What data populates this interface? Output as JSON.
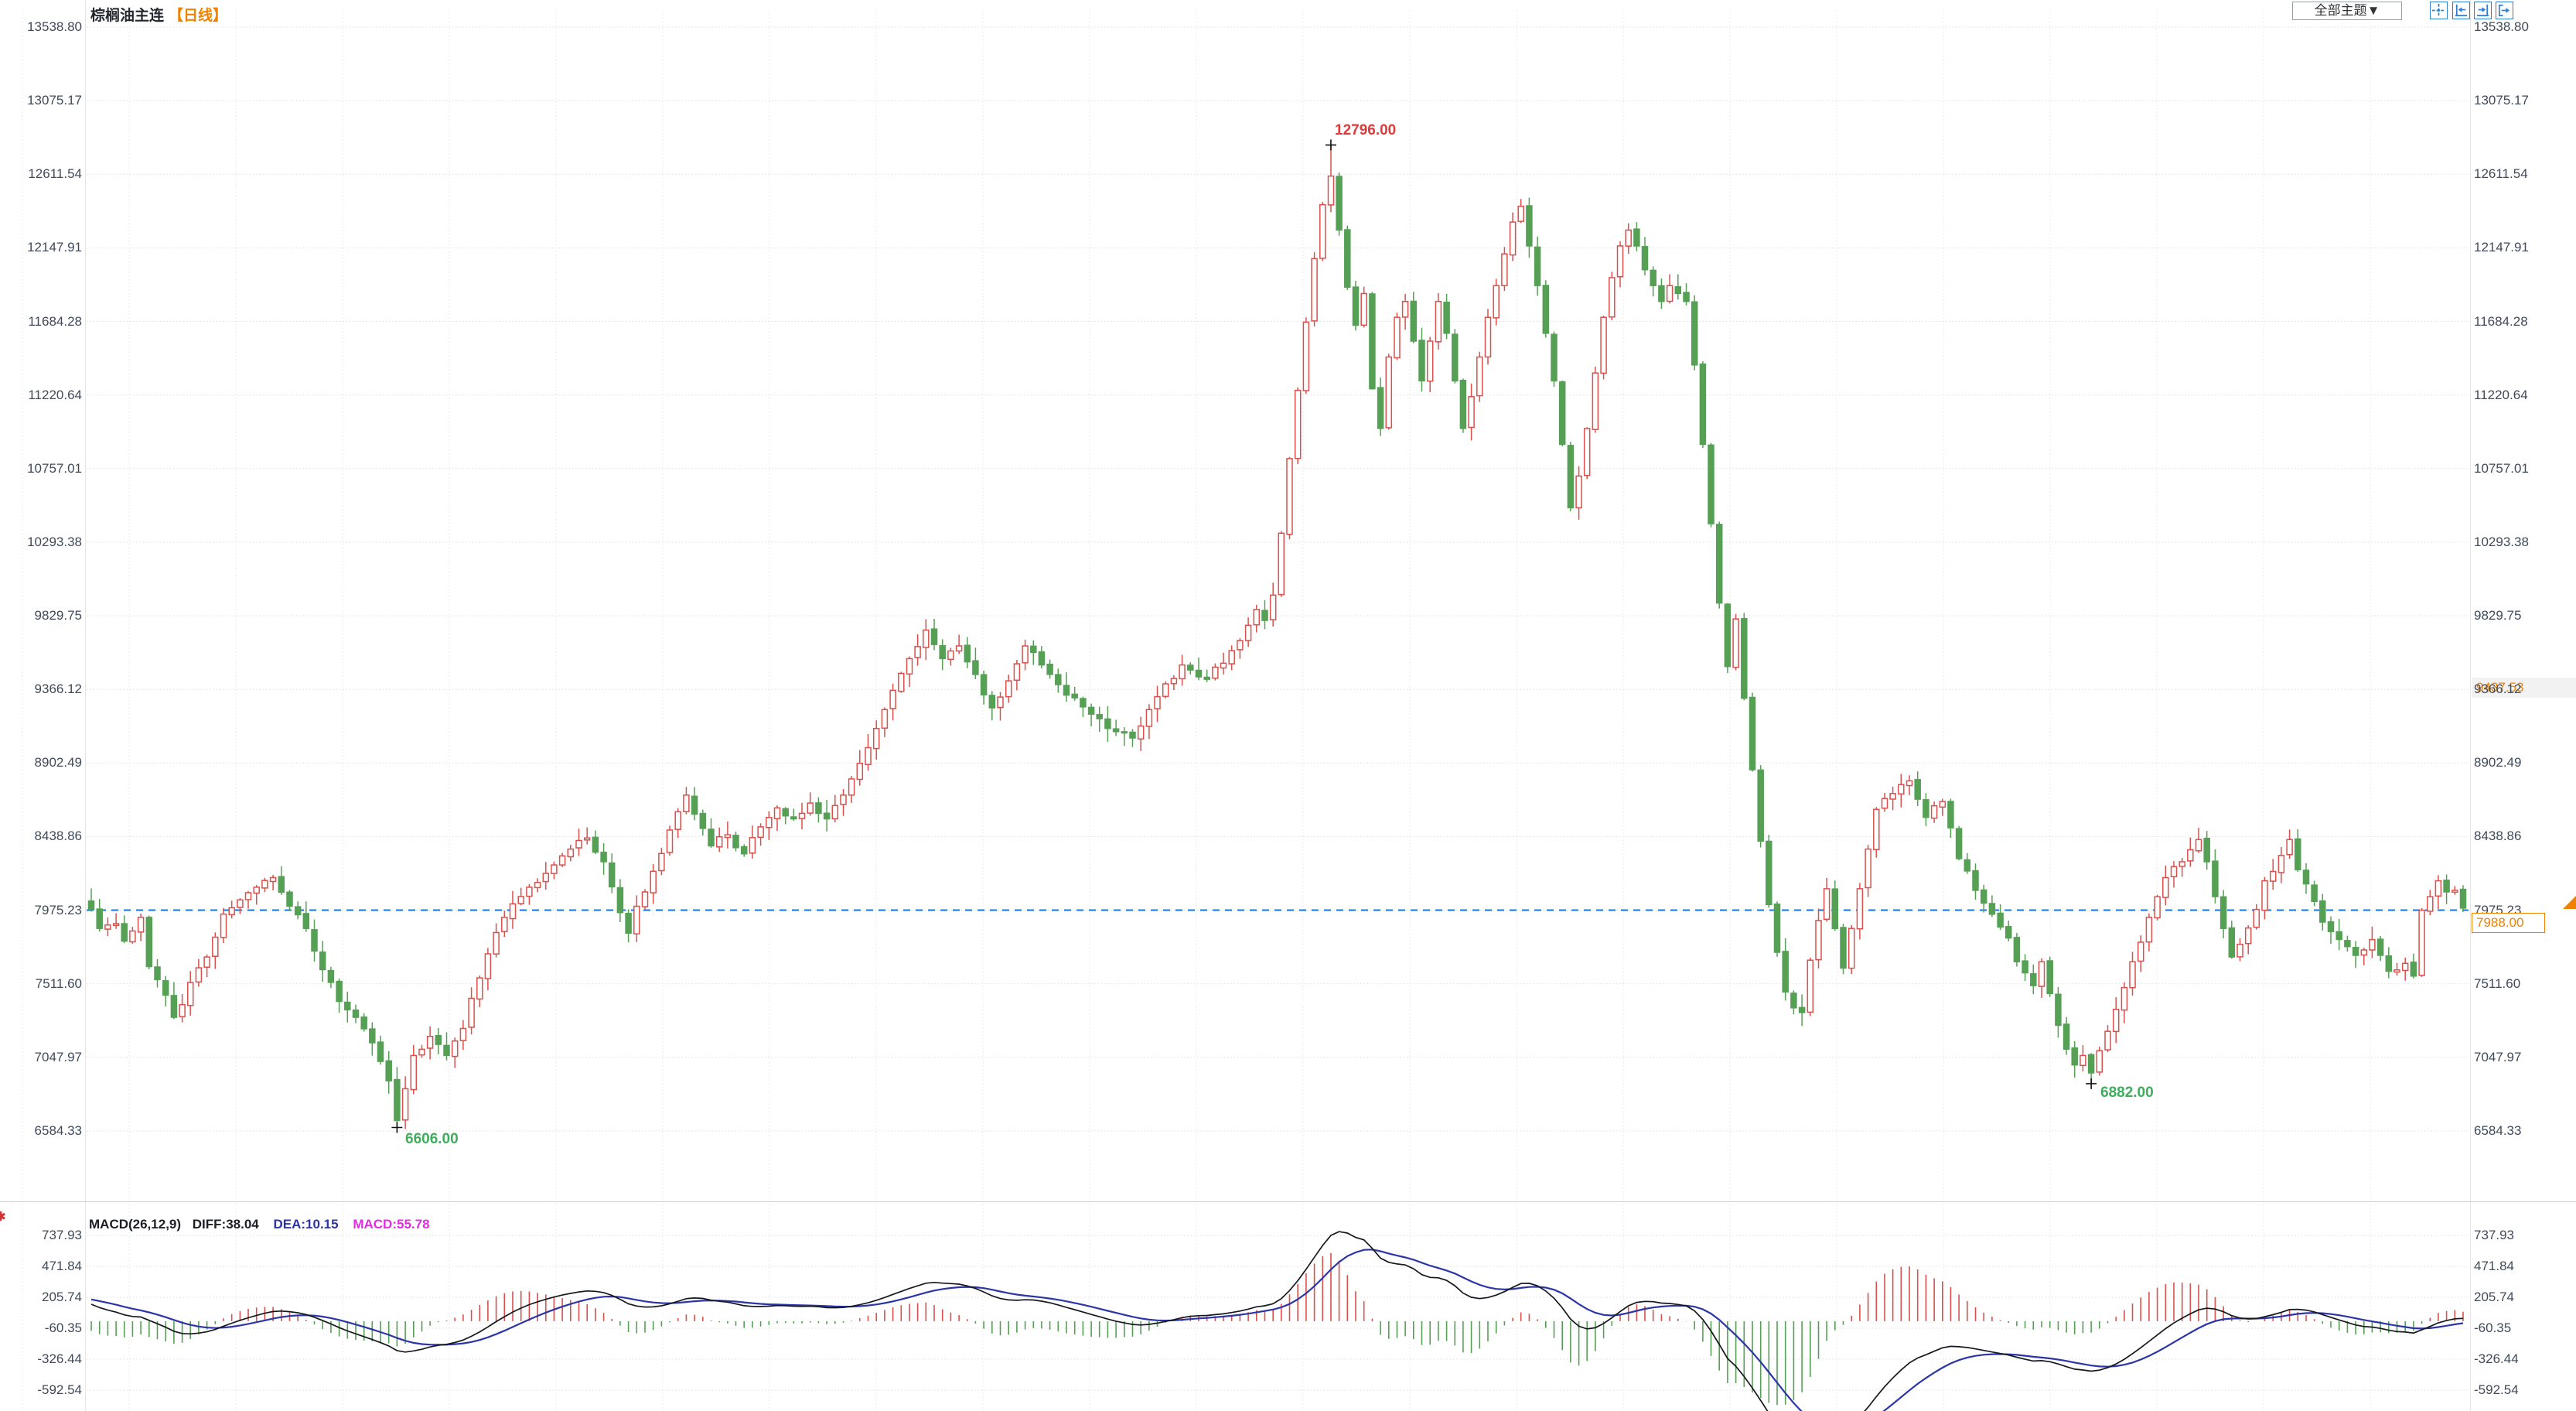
{
  "window": {
    "title": "棕榈油主连",
    "period_badge": "【日线】"
  },
  "toolbar": {
    "theme_dropdown_label": "全部主题▼",
    "buttons": [
      "crosshair-tool",
      "compress-x-axis",
      "expand-x-axis",
      "pan-right"
    ]
  },
  "price_axis": {
    "tick_labels": [
      "13538.80",
      "13075.17",
      "12611.54",
      "12147.91",
      "11684.28",
      "11220.64",
      "10757.01",
      "10293.38",
      "9829.75",
      "9366.12",
      "8902.49",
      "8438.86",
      "7975.23",
      "7511.60",
      "7047.97",
      "6584.33"
    ],
    "marker_label": "9437.53",
    "last_price_label": "7988.00",
    "reference_label": "7975.23"
  },
  "annotations": {
    "peak": "12796.00",
    "trough_left": "6606.00",
    "trough_right": "6882.00"
  },
  "macd_panel": {
    "title": "MACD(26,12,9)",
    "diff": "DIFF:38.04",
    "dea": "DEA:10.15",
    "macd": "MACD:55.78",
    "tick_labels": [
      "737.93",
      "471.84",
      "205.74",
      "-60.35",
      "-326.44",
      "-592.54"
    ]
  },
  "chart_data": {
    "type": "candlestick",
    "title": "棕榈油主连",
    "period": "日线",
    "y_axis_ticks": [
      13538.8,
      13075.17,
      12611.54,
      12147.91,
      11684.28,
      11220.64,
      10757.01,
      10293.38,
      9829.75,
      9366.12,
      8902.49,
      8438.86,
      7975.23,
      7511.6,
      7047.97,
      6584.33
    ],
    "reference_price": 7975.23,
    "last_price": 7988.0,
    "right_marker_price": 9437.53,
    "num_candles": 288,
    "close_anchors": [
      [
        0,
        7980
      ],
      [
        1,
        7860
      ],
      [
        3,
        7890
      ],
      [
        4,
        7780
      ],
      [
        6,
        7930
      ],
      [
        7,
        7620
      ],
      [
        9,
        7440
      ],
      [
        10,
        7300
      ],
      [
        11,
        7380
      ],
      [
        12,
        7520
      ],
      [
        14,
        7680
      ],
      [
        16,
        7950
      ],
      [
        18,
        8040
      ],
      [
        20,
        8120
      ],
      [
        22,
        8180
      ],
      [
        24,
        8000
      ],
      [
        26,
        7860
      ],
      [
        28,
        7600
      ],
      [
        30,
        7400
      ],
      [
        32,
        7300
      ],
      [
        34,
        7140
      ],
      [
        36,
        6900
      ],
      [
        37,
        6650
      ],
      [
        38,
        6850
      ],
      [
        39,
        7060
      ],
      [
        41,
        7180
      ],
      [
        43,
        7060
      ],
      [
        45,
        7230
      ],
      [
        46,
        7420
      ],
      [
        48,
        7700
      ],
      [
        50,
        7930
      ],
      [
        53,
        8120
      ],
      [
        56,
        8260
      ],
      [
        58,
        8360
      ],
      [
        60,
        8430
      ],
      [
        62,
        8280
      ],
      [
        64,
        7960
      ],
      [
        65,
        7830
      ],
      [
        66,
        8000
      ],
      [
        68,
        8220
      ],
      [
        70,
        8480
      ],
      [
        72,
        8700
      ],
      [
        73,
        8580
      ],
      [
        75,
        8380
      ],
      [
        77,
        8450
      ],
      [
        79,
        8330
      ],
      [
        81,
        8500
      ],
      [
        83,
        8620
      ],
      [
        85,
        8550
      ],
      [
        87,
        8650
      ],
      [
        89,
        8550
      ],
      [
        91,
        8700
      ],
      [
        93,
        8900
      ],
      [
        95,
        9120
      ],
      [
        97,
        9360
      ],
      [
        99,
        9560
      ],
      [
        101,
        9740
      ],
      [
        103,
        9560
      ],
      [
        105,
        9640
      ],
      [
        107,
        9460
      ],
      [
        109,
        9250
      ],
      [
        111,
        9420
      ],
      [
        113,
        9640
      ],
      [
        115,
        9520
      ],
      [
        118,
        9330
      ],
      [
        121,
        9210
      ],
      [
        124,
        9100
      ],
      [
        126,
        9060
      ],
      [
        129,
        9320
      ],
      [
        132,
        9520
      ],
      [
        135,
        9430
      ],
      [
        138,
        9610
      ],
      [
        140,
        9770
      ],
      [
        141,
        9870
      ],
      [
        142,
        9800
      ],
      [
        143,
        9960
      ],
      [
        144,
        10350
      ],
      [
        145,
        10820
      ],
      [
        146,
        11250
      ],
      [
        147,
        11680
      ],
      [
        148,
        12080
      ],
      [
        149,
        12420
      ],
      [
        150,
        12600
      ],
      [
        151,
        12260
      ],
      [
        152,
        11900
      ],
      [
        153,
        11660
      ],
      [
        154,
        11860
      ],
      [
        155,
        11260
      ],
      [
        156,
        11010
      ],
      [
        157,
        11460
      ],
      [
        158,
        11710
      ],
      [
        159,
        11810
      ],
      [
        160,
        11560
      ],
      [
        161,
        11310
      ],
      [
        162,
        11560
      ],
      [
        163,
        11810
      ],
      [
        164,
        11610
      ],
      [
        165,
        11310
      ],
      [
        166,
        11010
      ],
      [
        167,
        11210
      ],
      [
        168,
        11460
      ],
      [
        169,
        11710
      ],
      [
        170,
        11910
      ],
      [
        171,
        12110
      ],
      [
        172,
        12310
      ],
      [
        173,
        12410
      ],
      [
        174,
        12160
      ],
      [
        175,
        11910
      ],
      [
        176,
        11610
      ],
      [
        177,
        11310
      ],
      [
        178,
        10910
      ],
      [
        179,
        10510
      ],
      [
        180,
        10710
      ],
      [
        181,
        11010
      ],
      [
        182,
        11360
      ],
      [
        183,
        11710
      ],
      [
        184,
        11960
      ],
      [
        185,
        12160
      ],
      [
        186,
        12260
      ],
      [
        187,
        12160
      ],
      [
        188,
        12010
      ],
      [
        189,
        11910
      ],
      [
        190,
        11810
      ],
      [
        191,
        11910
      ],
      [
        192,
        11860
      ],
      [
        193,
        11810
      ],
      [
        194,
        11410
      ],
      [
        195,
        10910
      ],
      [
        196,
        10410
      ],
      [
        197,
        9910
      ],
      [
        198,
        9510
      ],
      [
        199,
        9810
      ],
      [
        200,
        9310
      ],
      [
        201,
        8860
      ],
      [
        202,
        8410
      ],
      [
        203,
        8010
      ],
      [
        204,
        7710
      ],
      [
        205,
        7460
      ],
      [
        206,
        7360
      ],
      [
        207,
        7330
      ],
      [
        208,
        7660
      ],
      [
        209,
        7910
      ],
      [
        210,
        8110
      ],
      [
        211,
        7860
      ],
      [
        212,
        7610
      ],
      [
        213,
        7860
      ],
      [
        214,
        8110
      ],
      [
        215,
        8360
      ],
      [
        216,
        8610
      ],
      [
        218,
        8710
      ],
      [
        220,
        8790
      ],
      [
        222,
        8560
      ],
      [
        224,
        8660
      ],
      [
        226,
        8300
      ],
      [
        228,
        8100
      ],
      [
        230,
        7950
      ],
      [
        232,
        7800
      ],
      [
        233,
        7650
      ],
      [
        235,
        7500
      ],
      [
        236,
        7650
      ],
      [
        237,
        7450
      ],
      [
        238,
        7250
      ],
      [
        239,
        7100
      ],
      [
        240,
        7000
      ],
      [
        241,
        7060
      ],
      [
        242,
        6950
      ],
      [
        243,
        7090
      ],
      [
        245,
        7350
      ],
      [
        247,
        7650
      ],
      [
        249,
        7930
      ],
      [
        250,
        8060
      ],
      [
        251,
        8180
      ],
      [
        253,
        8280
      ],
      [
        255,
        8420
      ],
      [
        256,
        8280
      ],
      [
        257,
        8060
      ],
      [
        258,
        7860
      ],
      [
        259,
        7680
      ],
      [
        260,
        7760
      ],
      [
        262,
        7980
      ],
      [
        263,
        8160
      ],
      [
        265,
        8320
      ],
      [
        266,
        8420
      ],
      [
        267,
        8230
      ],
      [
        269,
        8030
      ],
      [
        270,
        7900
      ],
      [
        272,
        7790
      ],
      [
        274,
        7690
      ],
      [
        276,
        7790
      ],
      [
        277,
        7690
      ],
      [
        278,
        7590
      ],
      [
        280,
        7640
      ],
      [
        281,
        7560
      ],
      [
        282,
        7975
      ],
      [
        283,
        8060
      ],
      [
        284,
        8160
      ],
      [
        285,
        8090
      ],
      [
        286,
        8100
      ],
      [
        287,
        7988
      ]
    ],
    "macd_warmup_anchors": [
      [
        -40,
        7150
      ],
      [
        -25,
        7450
      ],
      [
        -12,
        8050
      ],
      [
        -5,
        8300
      ],
      [
        -2,
        8060
      ]
    ],
    "marked_points": {
      "peak": {
        "index": 150,
        "price": 12796.0,
        "label": "12796.00"
      },
      "trough_left": {
        "index": 37,
        "price": 6606.0,
        "label": "6606.00"
      },
      "trough_right": {
        "index": 242,
        "price": 6882.0,
        "label": "6882.00"
      }
    },
    "macd": {
      "params": [
        26,
        12,
        9
      ],
      "diff_value": 38.04,
      "dea_value": 10.15,
      "macd_value": 55.78,
      "axis_ticks": [
        737.93,
        471.84,
        205.74,
        -60.35,
        -326.44,
        -592.54
      ]
    },
    "colors": {
      "up": "#d9504c",
      "down": "#55a055",
      "reference_line": "#1e7ce2",
      "diff_line": "#15181d",
      "dea_line": "#2b35a8",
      "hist_positive": "#d9504c",
      "hist_negative": "#55a055",
      "accent_orange": "#ef8200",
      "grid": "#dcdcdc"
    }
  }
}
